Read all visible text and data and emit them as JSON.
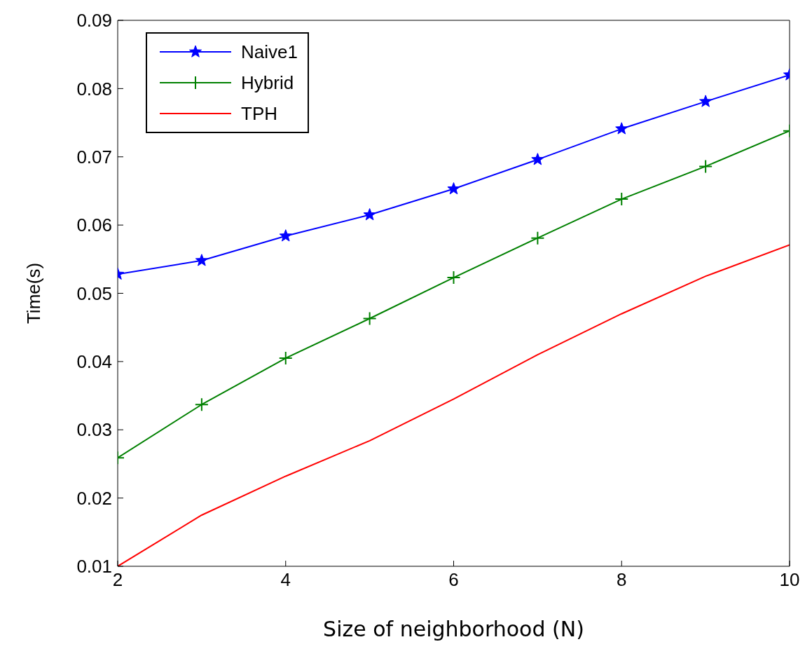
{
  "chart_data": {
    "type": "line",
    "xlabel": "Size of neighborhood (N)",
    "ylabel": "Time(s)",
    "x": [
      2,
      3,
      4,
      5,
      6,
      7,
      8,
      9,
      10
    ],
    "series": [
      {
        "name": "Naive1",
        "color": "#0000ff",
        "marker": "star",
        "values": [
          0.0528,
          0.0548,
          0.0584,
          0.0615,
          0.0653,
          0.0696,
          0.0741,
          0.0781,
          0.082
        ]
      },
      {
        "name": "Hybrid",
        "color": "#008000",
        "marker": "cross",
        "values": [
          0.0259,
          0.0337,
          0.0405,
          0.0463,
          0.0523,
          0.0581,
          0.0638,
          0.0686,
          0.0738
        ]
      },
      {
        "name": "TPH",
        "color": "#ff0000",
        "marker": "none",
        "values": [
          0.01,
          0.0175,
          0.0232,
          0.0284,
          0.0345,
          0.041,
          0.047,
          0.0525,
          0.0571
        ]
      }
    ],
    "xlim": [
      2,
      10
    ],
    "xticks": [
      2,
      4,
      6,
      8,
      10
    ],
    "ylim": [
      0.01,
      0.09
    ],
    "yticks": [
      0.01,
      0.02,
      0.03,
      0.04,
      0.05,
      0.06,
      0.07,
      0.08,
      0.09
    ],
    "grid": false,
    "legend": "top left",
    "line_style": "solid"
  }
}
